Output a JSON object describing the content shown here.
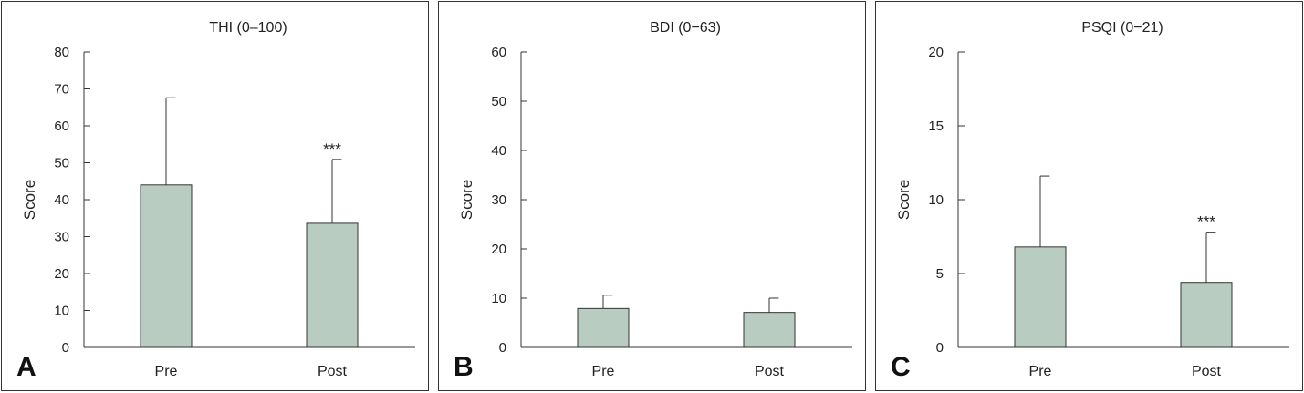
{
  "colors": {
    "bar_fill": "#b8ccc2",
    "bar_stroke": "#333333",
    "axis": "#333333"
  },
  "chart_data": [
    {
      "type": "bar",
      "panel_label": "A",
      "title": "THI (0–100)",
      "ylabel": "Score",
      "xlabel": "",
      "categories": [
        "Pre",
        "Post"
      ],
      "values": [
        44,
        33.6
      ],
      "error_upper": [
        67.6,
        50.9
      ],
      "significance": [
        "",
        "***"
      ],
      "ylim": [
        0,
        80
      ],
      "yticks": [
        0,
        10,
        20,
        30,
        40,
        50,
        60,
        70,
        80
      ]
    },
    {
      "type": "bar",
      "panel_label": "B",
      "title": "BDI (0−63)",
      "ylabel": "Score",
      "xlabel": "",
      "categories": [
        "Pre",
        "Post"
      ],
      "values": [
        7.9,
        7.1
      ],
      "error_upper": [
        10.6,
        10.0
      ],
      "significance": [
        "",
        ""
      ],
      "ylim": [
        0,
        60
      ],
      "yticks": [
        0,
        10,
        20,
        30,
        40,
        50,
        60
      ]
    },
    {
      "type": "bar",
      "panel_label": "C",
      "title": "PSQI (0−21)",
      "ylabel": "Score",
      "xlabel": "",
      "categories": [
        "Pre",
        "Post"
      ],
      "values": [
        6.8,
        4.4
      ],
      "error_upper": [
        11.6,
        7.8
      ],
      "significance": [
        "",
        "***"
      ],
      "ylim": [
        0,
        20
      ],
      "yticks": [
        0,
        5,
        10,
        15,
        20
      ]
    }
  ]
}
